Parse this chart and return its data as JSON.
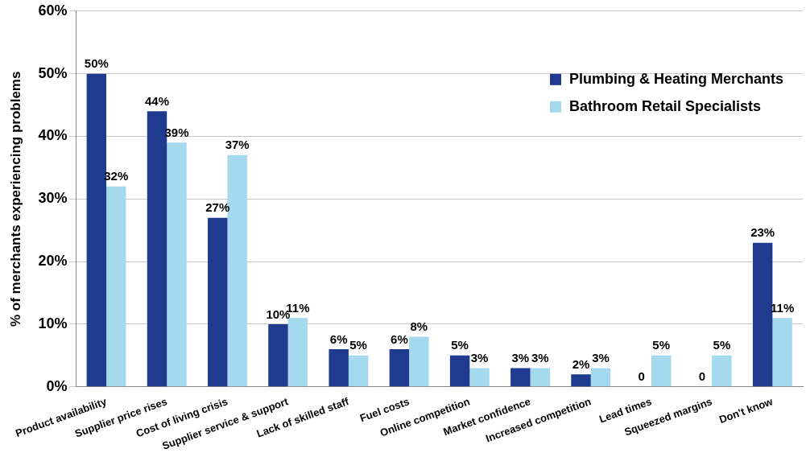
{
  "chart_data": {
    "type": "bar",
    "ylabel": "% of merchants experiencing problems",
    "categories": [
      "Product availability",
      "Supplier price rises",
      "Cost of living crisis",
      "Supplier service & support",
      "Lack of skilled staff",
      "Fuel costs",
      "Online competition",
      "Market confidence",
      "Increased competition",
      "Lead times",
      "Squeezed margins",
      "Don't know"
    ],
    "series": [
      {
        "name": "Plumbing & Heating Merchants",
        "color": "#1f3b8f",
        "values": [
          50,
          44,
          27,
          10,
          6,
          6,
          5,
          3,
          2,
          0,
          0,
          23
        ],
        "value_labels": [
          "50%",
          "44%",
          "27%",
          "10%",
          "6%",
          "6%",
          "5%",
          "3%",
          "2%",
          "0",
          "0",
          "23%"
        ]
      },
      {
        "name": "Bathroom Retail Specialists",
        "color": "#a5d9ee",
        "values": [
          32,
          39,
          37,
          11,
          5,
          8,
          3,
          3,
          3,
          5,
          5,
          11
        ],
        "value_labels": [
          "32%",
          "39%",
          "37%",
          "11%",
          "5%",
          "8%",
          "3%",
          "3%",
          "3%",
          "5%",
          "5%",
          "11%"
        ]
      }
    ],
    "ylim": [
      0,
      60
    ],
    "yticks": [
      {
        "value": 0,
        "label": "0%"
      },
      {
        "value": 10,
        "label": "10%"
      },
      {
        "value": 20,
        "label": "20%"
      },
      {
        "value": 30,
        "label": "30%"
      },
      {
        "value": 40,
        "label": "40%"
      },
      {
        "value": 50,
        "label": "50%"
      },
      {
        "value": 60,
        "label": "60%"
      }
    ],
    "grid": "y",
    "legend": "top right"
  }
}
